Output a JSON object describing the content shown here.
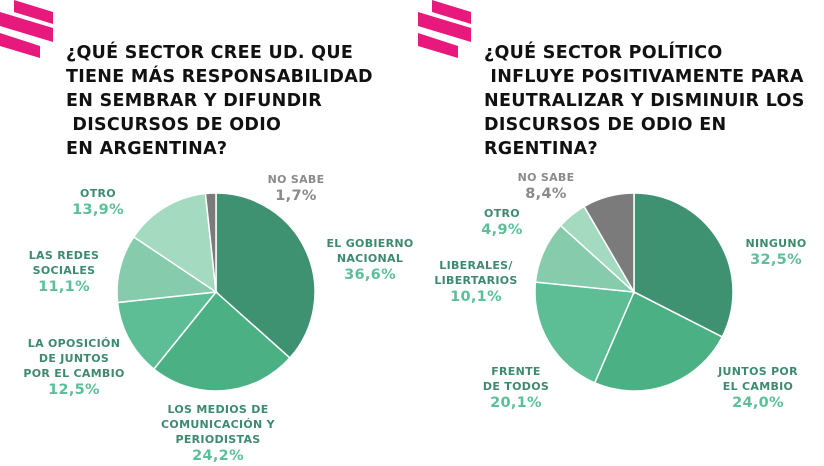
{
  "colors": {
    "brand": "#e8197d",
    "text": "#111111",
    "label": "#3e8a6e",
    "percent": "#5cbf98",
    "no_sabe": "#7b7b7b"
  },
  "chart_data": [
    {
      "type": "pie",
      "title": "¿QUÉ SECTOR CREE UD. QUE\nTIENE MÁS RESPONSABILIDAD\nEN SEMBRAR Y DIFUNDIR\n DISCURSOS DE ODIO\nEN ARGENTINA?",
      "slices": [
        {
          "label": "EL GOBIERNO\nNACIONAL",
          "value": 36.6,
          "display": "36,6%",
          "color": "#3e9271"
        },
        {
          "label": "LOS MEDIOS DE\nCOMUNICACIÓN Y\nPERIODISTAS",
          "value": 24.2,
          "display": "24,2%",
          "color": "#4bb084"
        },
        {
          "label": "LA OPOSICIÓN\nDE JUNTOS\nPOR EL CAMBIO",
          "value": 12.5,
          "display": "12,5%",
          "color": "#5dbd95"
        },
        {
          "label": "LAS REDES\nSOCIALES",
          "value": 11.1,
          "display": "11,1%",
          "color": "#86ccac"
        },
        {
          "label": "OTRO",
          "value": 13.9,
          "display": "13,9%",
          "color": "#a3dac0"
        },
        {
          "label": "NO SABE",
          "value": 1.7,
          "display": "1,7%",
          "color": "#7b7b7b"
        }
      ]
    },
    {
      "type": "pie",
      "title": "¿QUÉ SECTOR POLÍTICO\n INFLUYE POSITIVAMENTE PARA\nNEUTRALIZAR Y DISMINUIR LOS\nDISCURSOS DE ODIO EN\nRGENTINA?",
      "slices": [
        {
          "label": "NINGUNO",
          "value": 32.5,
          "display": "32,5%",
          "color": "#3e9271"
        },
        {
          "label": "JUNTOS POR\nEL CAMBIO",
          "value": 24.0,
          "display": "24,0%",
          "color": "#4bb084"
        },
        {
          "label": "FRENTE\nDE TODOS",
          "value": 20.1,
          "display": "20,1%",
          "color": "#5dbd95"
        },
        {
          "label": "LIBERALES/\nLIBERTARIOS",
          "value": 10.1,
          "display": "10,1%",
          "color": "#86ccac"
        },
        {
          "label": "OTRO",
          "value": 4.9,
          "display": "4,9%",
          "color": "#a3dac0"
        },
        {
          "label": "NO SABE",
          "value": 8.4,
          "display": "8,4%",
          "color": "#7b7b7b"
        }
      ]
    }
  ]
}
